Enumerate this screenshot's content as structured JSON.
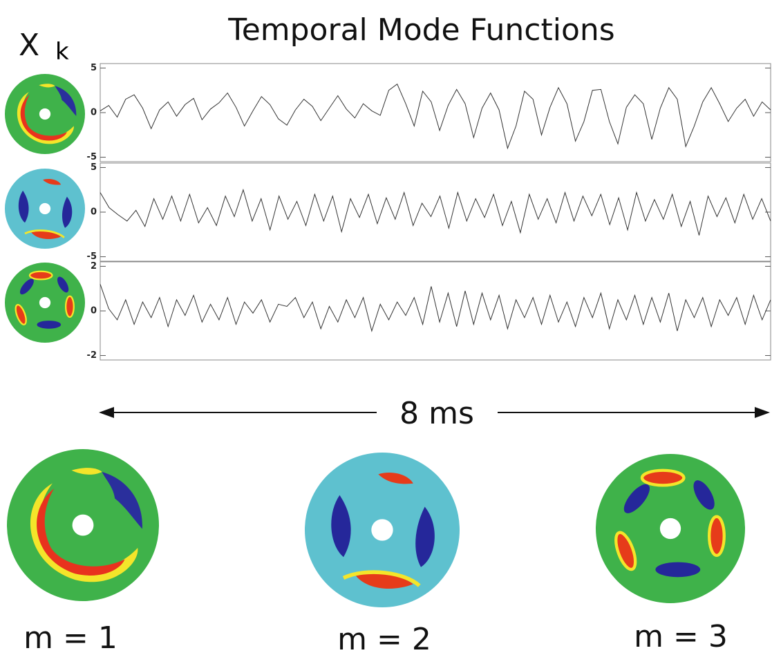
{
  "title": "Temporal Mode Functions",
  "symbol": "X",
  "symbol_subscript": "k",
  "annotation": "8 ms",
  "modes": [
    "m = 1",
    "m = 2",
    "m = 3"
  ],
  "chart_data": [
    {
      "type": "line",
      "color": "#333333",
      "ylim": [
        -5.5,
        5.5
      ],
      "yticks": [
        -5,
        0,
        5
      ],
      "values": [
        0.2,
        0.8,
        -0.5,
        1.5,
        2.0,
        0.5,
        -1.8,
        0.3,
        1.2,
        -0.4,
        0.9,
        1.6,
        -0.8,
        0.4,
        1.1,
        2.2,
        0.6,
        -1.5,
        0.2,
        1.8,
        0.9,
        -0.7,
        -1.4,
        0.3,
        1.5,
        0.7,
        -0.9,
        0.5,
        1.9,
        0.4,
        -0.6,
        1.0,
        0.2,
        -0.3,
        2.5,
        3.2,
        1.0,
        -1.5,
        2.4,
        1.2,
        -2.0,
        0.8,
        2.6,
        1.0,
        -2.8,
        0.5,
        2.2,
        0.3,
        -4.0,
        -1.5,
        2.4,
        1.5,
        -2.5,
        0.6,
        2.8,
        1.0,
        -3.2,
        -1.0,
        2.5,
        2.6,
        -1.0,
        -3.5,
        0.6,
        2.0,
        1.0,
        -3.0,
        0.5,
        2.8,
        1.5,
        -3.8,
        -1.5,
        1.2,
        2.8,
        1.0,
        -1.0,
        0.5,
        1.5,
        -0.4,
        1.2,
        0.3
      ]
    },
    {
      "type": "line",
      "color": "#333333",
      "ylim": [
        -5.5,
        5.5
      ],
      "yticks": [
        -5,
        0,
        5
      ],
      "values": [
        2.2,
        0.5,
        -0.3,
        -1.0,
        0.2,
        -1.6,
        1.5,
        -0.8,
        1.8,
        -1.0,
        2.0,
        -1.2,
        0.5,
        -1.5,
        1.8,
        -0.5,
        2.5,
        -1.0,
        1.5,
        -2.0,
        1.8,
        -0.8,
        1.2,
        -1.5,
        2.0,
        -1.0,
        1.8,
        -2.2,
        1.5,
        -0.6,
        2.0,
        -1.3,
        1.6,
        -0.8,
        2.2,
        -1.5,
        1.0,
        -0.5,
        1.8,
        -1.8,
        2.2,
        -1.0,
        1.5,
        -0.6,
        2.0,
        -1.5,
        1.2,
        -2.3,
        2.0,
        -0.8,
        1.5,
        -1.2,
        2.2,
        -1.0,
        1.8,
        -0.4,
        2.0,
        -1.4,
        1.6,
        -2.0,
        2.2,
        -1.0,
        1.4,
        -0.8,
        2.0,
        -1.6,
        1.2,
        -2.6,
        1.8,
        -0.5,
        1.6,
        -1.2,
        2.0,
        -0.8,
        1.5,
        -1.0
      ]
    },
    {
      "type": "line",
      "color": "#333333",
      "ylim": [
        -2.2,
        2.2
      ],
      "yticks": [
        -2,
        0,
        2
      ],
      "values": [
        1.2,
        0.1,
        -0.4,
        0.5,
        -0.6,
        0.4,
        -0.3,
        0.6,
        -0.7,
        0.5,
        -0.2,
        0.7,
        -0.5,
        0.3,
        -0.4,
        0.6,
        -0.6,
        0.4,
        -0.1,
        0.5,
        -0.5,
        0.3,
        0.2,
        0.6,
        -0.3,
        0.4,
        -0.8,
        0.2,
        -0.5,
        0.5,
        -0.3,
        0.6,
        -0.9,
        0.3,
        -0.4,
        0.4,
        -0.2,
        0.6,
        -0.6,
        1.1,
        -0.5,
        0.8,
        -0.7,
        0.9,
        -0.6,
        0.8,
        -0.4,
        0.7,
        -0.8,
        0.5,
        -0.3,
        0.6,
        -0.6,
        0.7,
        -0.5,
        0.4,
        -0.7,
        0.6,
        -0.3,
        0.8,
        -0.8,
        0.5,
        -0.4,
        0.7,
        -0.6,
        0.6,
        -0.5,
        0.8,
        -0.9,
        0.5,
        -0.3,
        0.6,
        -0.7,
        0.5,
        -0.2,
        0.6,
        -0.6,
        0.7,
        -0.4,
        0.5
      ]
    }
  ]
}
